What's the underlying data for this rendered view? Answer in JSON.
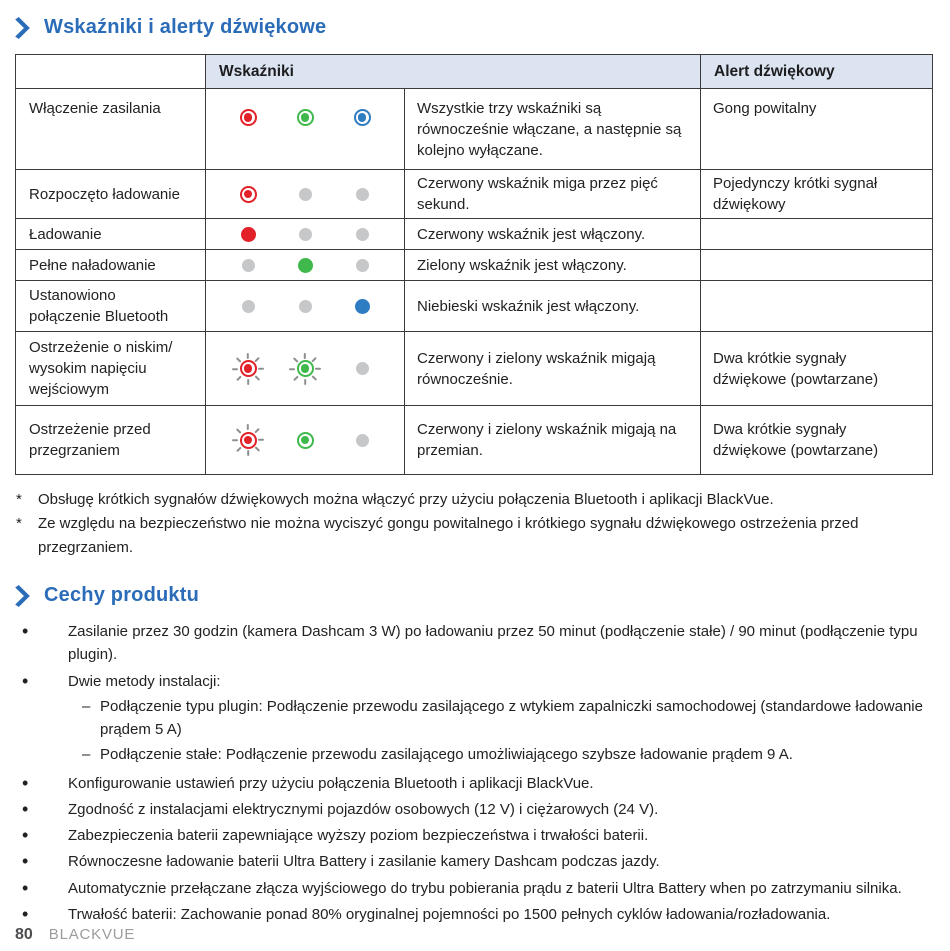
{
  "sections": {
    "indicators": {
      "title": "Wskaźniki i alerty dźwiękowe"
    },
    "features": {
      "title": "Cechy produktu"
    }
  },
  "colors": {
    "red": "#e22128",
    "green": "#3fb94c",
    "blue": "#2e7dc2",
    "off": "#c6c7c9",
    "ray": "#8f8f8f",
    "heading_blue": "#2b6cb8",
    "header_bg": "#dbe4f0"
  },
  "markers": {
    "bullet": "•",
    "dash": "–",
    "footnote": "*"
  },
  "table": {
    "header": {
      "indicators": "Wskaźniki",
      "alert": "Alert dźwiękowy"
    },
    "rows": [
      {
        "label": "Włączenie zasilania",
        "leds": [
          "ring-red",
          "ring-green",
          "ring-blue"
        ],
        "description": "Wszystkie trzy wskaźniki są równocześnie włączane, a następnie są kolejno wyłączane.",
        "alert": "Gong powitalny",
        "valign": "top"
      },
      {
        "label": "Rozpoczęto ładowanie",
        "leds": [
          "ring-red",
          "off",
          "off"
        ],
        "description": "Czerwony wskaźnik miga przez pięć sekund.",
        "alert": "Pojedynczy krótki sygnał dźwiękowy",
        "valign": "middle"
      },
      {
        "label": "Ładowanie",
        "leds": [
          "solid-red",
          "off",
          "off"
        ],
        "description": "Czerwony wskaźnik jest włączony.",
        "alert": "",
        "valign": "middle"
      },
      {
        "label": "Pełne naładowanie",
        "leds": [
          "off",
          "solid-green",
          "off"
        ],
        "description": "Zielony wskaźnik jest włączony.",
        "alert": "",
        "valign": "middle"
      },
      {
        "label": "Ustanowiono\npołączenie Bluetooth",
        "leds": [
          "off",
          "off",
          "solid-blue"
        ],
        "description": "Niebieski wskaźnik jest włączony.",
        "alert": "",
        "valign": "middle"
      },
      {
        "label": "Ostrzeżenie o niskim/\nwysokim napięciu\nwejściowym",
        "leds": [
          "blink-red",
          "blink-green",
          "off"
        ],
        "description": "Czerwony i zielony wskaźnik migają równocześnie.",
        "alert": "Dwa krótkie sygnały dźwiękowe (powtarzane)",
        "valign": "middle"
      },
      {
        "label": "Ostrzeżenie przed\nprzegrzaniem",
        "leds": [
          "blink-red",
          "ring-green",
          "off"
        ],
        "description": "Czerwony i zielony wskaźnik migają na przemian.",
        "alert": "Dwa krótkie sygnały dźwiękowe (powtarzane)",
        "valign": "middle"
      }
    ]
  },
  "footnotes": [
    {
      "marker": "*",
      "text": "Obsługę krótkich sygnałów dźwiękowych można włączyć przy użyciu połączenia Bluetooth i aplikacji BlackVue."
    },
    {
      "marker": "*",
      "text": "Ze względu na bezpieczeństwo nie można wyciszyć gongu powitalnego i krótkiego sygnału dźwiękowego ostrzeżenia przed przegrzaniem."
    }
  ],
  "features": [
    {
      "text": "Zasilanie przez 30 godzin (kamera Dashcam 3 W) po ładowaniu przez 50 minut (podłączenie stałe) / 90 minut (podłączenie typu plugin)."
    },
    {
      "text": "Dwie metody instalacji:",
      "children": [
        "Podłączenie typu plugin: Podłączenie przewodu zasilającego z wtykiem zapalniczki samochodowej (standardowe ładowanie prądem 5 A)",
        "Podłączenie stałe: Podłączenie przewodu zasilającego umożliwiającego szybsze ładowanie prądem 9 A."
      ]
    },
    {
      "text": "Konfigurowanie ustawień przy użyciu połączenia Bluetooth i aplikacji BlackVue."
    },
    {
      "text": "Zgodność z instalacjami elektrycznymi pojazdów osobowych (12 V) i ciężarowych (24 V)."
    },
    {
      "text": "Zabezpieczenia baterii zapewniające wyższy poziom bezpieczeństwa i trwałości baterii."
    },
    {
      "text": "Równoczesne ładowanie baterii Ultra Battery i zasilanie kamery Dashcam podczas jazdy."
    },
    {
      "text": "Automatycznie przełączane złącza wyjściowego do trybu pobierania prądu z baterii Ultra Battery when po zatrzymaniu silnika."
    },
    {
      "text": "Trwałość baterii: Zachowanie ponad 80% oryginalnej pojemności po 1500 pełnych cyklów ładowania/rozładowania."
    }
  ],
  "footer": {
    "page_number": "80",
    "brand": "BLACKVUE"
  }
}
